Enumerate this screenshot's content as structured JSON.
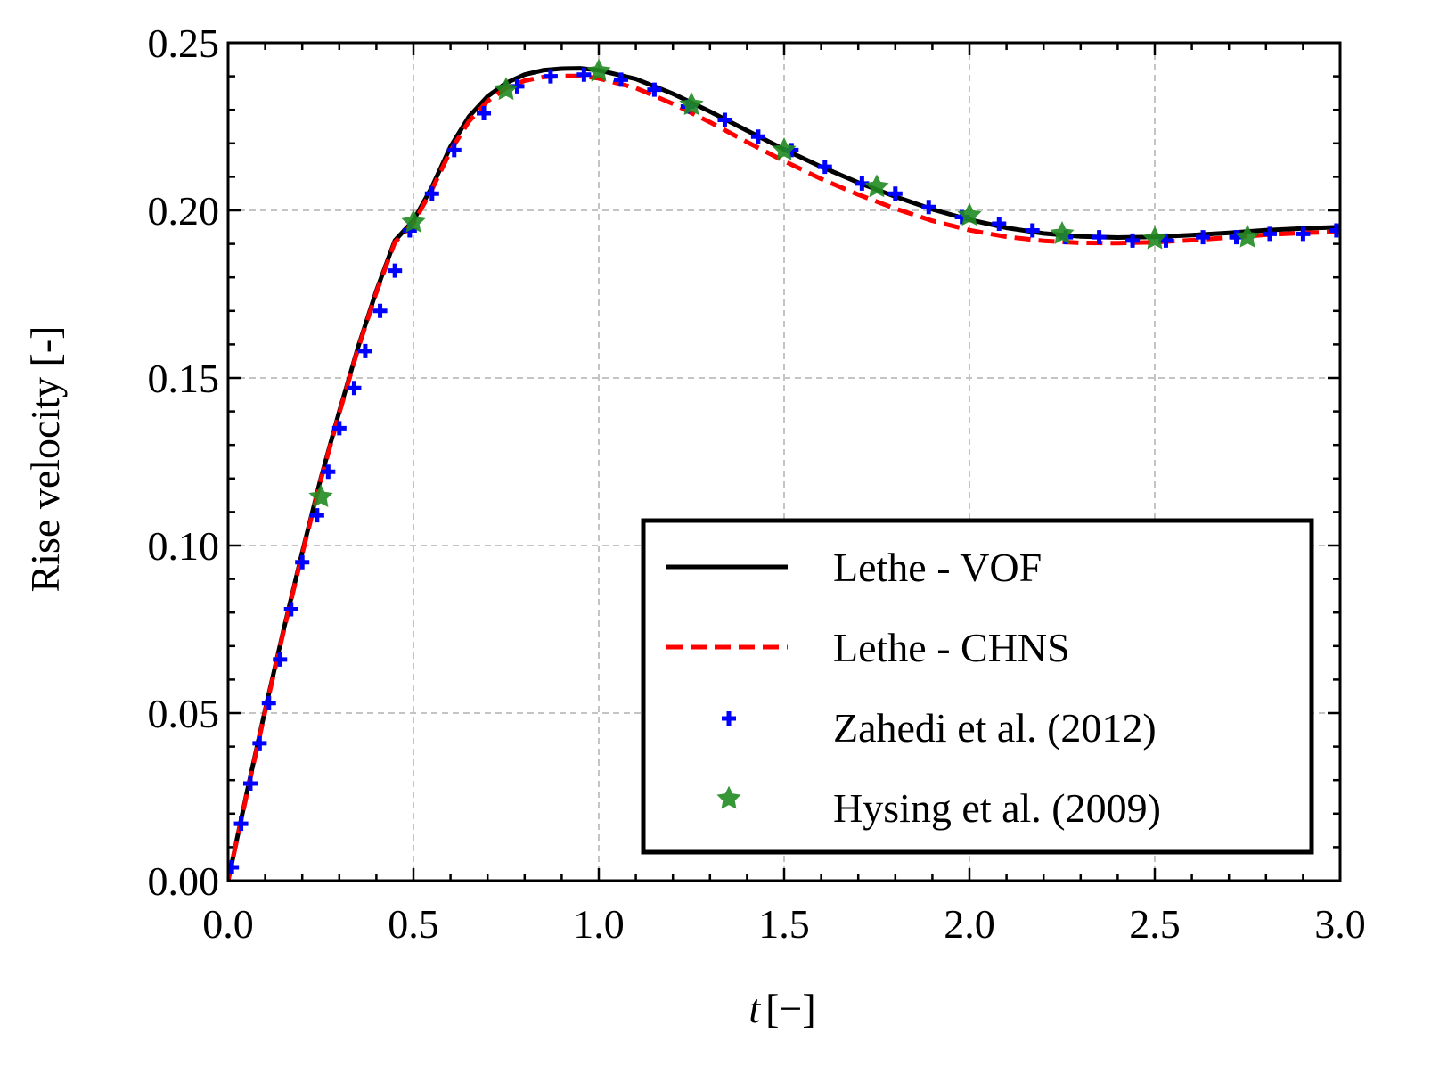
{
  "chart_data": {
    "type": "line",
    "xlabel_var": "t",
    "xlabel_unit": "[−]",
    "ylabel": "Rise velocity [-]",
    "xlim": [
      0.0,
      3.0
    ],
    "ylim": [
      0.0,
      0.25
    ],
    "x_ticks": [
      0.0,
      0.5,
      1.0,
      1.5,
      2.0,
      2.5,
      3.0
    ],
    "x_tick_labels": [
      "0.0",
      "0.5",
      "1.0",
      "1.5",
      "2.0",
      "2.5",
      "3.0"
    ],
    "y_ticks": [
      0.0,
      0.05,
      0.1,
      0.15,
      0.2,
      0.25
    ],
    "y_tick_labels": [
      "0.00",
      "0.05",
      "0.10",
      "0.15",
      "0.20",
      "0.25"
    ],
    "grid": true,
    "legend_position": "lower-right",
    "series": [
      {
        "name": "Lethe - VOF",
        "style": "solid-line",
        "color": "#000000",
        "x": [
          0.0,
          0.05,
          0.1,
          0.15,
          0.2,
          0.25,
          0.3,
          0.35,
          0.4,
          0.45,
          0.5,
          0.55,
          0.6,
          0.65,
          0.7,
          0.75,
          0.8,
          0.85,
          0.9,
          0.95,
          1.0,
          1.1,
          1.2,
          1.3,
          1.4,
          1.5,
          1.6,
          1.7,
          1.8,
          1.9,
          2.0,
          2.1,
          2.2,
          2.3,
          2.4,
          2.5,
          2.6,
          2.7,
          2.8,
          2.9,
          3.0
        ],
        "y": [
          0.0,
          0.026,
          0.051,
          0.075,
          0.098,
          0.12,
          0.14,
          0.159,
          0.176,
          0.191,
          0.197,
          0.207,
          0.219,
          0.228,
          0.234,
          0.238,
          0.2405,
          0.2418,
          0.2423,
          0.2424,
          0.2418,
          0.2392,
          0.2348,
          0.2295,
          0.2238,
          0.2182,
          0.213,
          0.2083,
          0.2041,
          0.2003,
          0.1972,
          0.1948,
          0.1931,
          0.1922,
          0.1919,
          0.1921,
          0.1926,
          0.1933,
          0.1941,
          0.1946,
          0.195
        ]
      },
      {
        "name": "Lethe - CHNS",
        "style": "dashed-line",
        "color": "#ff0000",
        "x": [
          0.0,
          0.05,
          0.1,
          0.15,
          0.2,
          0.25,
          0.3,
          0.35,
          0.4,
          0.45,
          0.5,
          0.55,
          0.6,
          0.65,
          0.7,
          0.75,
          0.8,
          0.85,
          0.9,
          0.95,
          1.0,
          1.1,
          1.2,
          1.3,
          1.4,
          1.5,
          1.6,
          1.7,
          1.8,
          1.9,
          2.0,
          2.1,
          2.2,
          2.3,
          2.4,
          2.5,
          2.6,
          2.7,
          2.8,
          2.9,
          3.0
        ],
        "y": [
          0.0,
          0.0255,
          0.0505,
          0.0745,
          0.0975,
          0.1195,
          0.1395,
          0.1585,
          0.1755,
          0.1905,
          0.1962,
          0.2062,
          0.2178,
          0.2266,
          0.2326,
          0.2365,
          0.2387,
          0.2398,
          0.2401,
          0.2401,
          0.2394,
          0.2365,
          0.2318,
          0.2263,
          0.2204,
          0.2147,
          0.2094,
          0.2047,
          0.2005,
          0.1969,
          0.1941,
          0.1921,
          0.1909,
          0.1903,
          0.1902,
          0.1905,
          0.1911,
          0.1919,
          0.1927,
          0.1933,
          0.1936
        ]
      },
      {
        "name": "Zahedi et al. (2012)",
        "style": "plus-marker",
        "color": "#0000ff",
        "x": [
          0.01,
          0.035,
          0.06,
          0.085,
          0.11,
          0.14,
          0.17,
          0.2,
          0.24,
          0.27,
          0.3,
          0.34,
          0.37,
          0.41,
          0.45,
          0.49,
          0.55,
          0.61,
          0.69,
          0.78,
          0.87,
          0.96,
          1.06,
          1.15,
          1.24,
          1.34,
          1.43,
          1.52,
          1.61,
          1.71,
          1.8,
          1.89,
          1.98,
          2.08,
          2.17,
          2.26,
          2.35,
          2.44,
          2.53,
          2.63,
          2.72,
          2.81,
          2.9,
          2.99
        ],
        "y": [
          0.004,
          0.017,
          0.029,
          0.041,
          0.053,
          0.066,
          0.081,
          0.095,
          0.109,
          0.122,
          0.135,
          0.147,
          0.158,
          0.17,
          0.182,
          0.194,
          0.205,
          0.218,
          0.229,
          0.237,
          0.24,
          0.2405,
          0.239,
          0.236,
          0.231,
          0.227,
          0.222,
          0.218,
          0.213,
          0.208,
          0.205,
          0.201,
          0.198,
          0.196,
          0.194,
          0.192,
          0.192,
          0.191,
          0.191,
          0.192,
          0.192,
          0.193,
          0.193,
          0.194
        ]
      },
      {
        "name": "Hysing et al. (2009)",
        "style": "star-marker",
        "color": "#228b22",
        "x": [
          0.25,
          0.5,
          0.75,
          1.0,
          1.25,
          1.5,
          1.75,
          2.0,
          2.25,
          2.5,
          2.75
        ],
        "y": [
          0.1145,
          0.1965,
          0.236,
          0.2415,
          0.2315,
          0.218,
          0.207,
          0.1985,
          0.193,
          0.1915,
          0.192
        ]
      }
    ]
  }
}
